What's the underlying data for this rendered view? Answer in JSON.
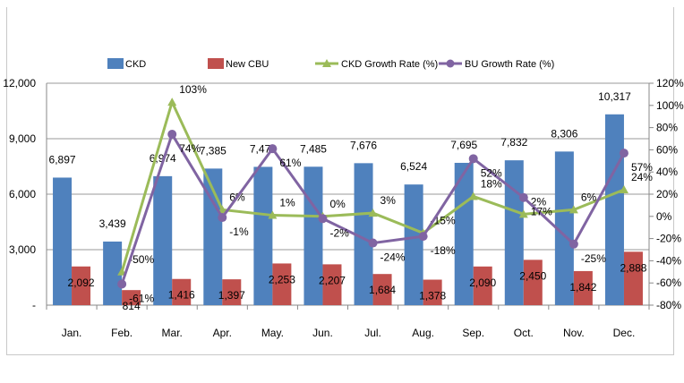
{
  "chart_data": {
    "type": "bar",
    "categories": [
      "Jan.",
      "Feb.",
      "Mar.",
      "Apr.",
      "May.",
      "Jun.",
      "Jul.",
      "Aug.",
      "Sep.",
      "Oct.",
      "Nov.",
      "Dec."
    ],
    "series": [
      {
        "name": "CKD",
        "type": "bar",
        "axis": "left",
        "color": "#4f81bd",
        "values": [
          6897,
          3439,
          6974,
          7385,
          7478,
          7485,
          7676,
          6524,
          7695,
          7832,
          8306,
          10317
        ],
        "labels": [
          "6,897",
          "3,439",
          "6,974",
          "7,385",
          "7,478",
          "7,485",
          "7,676",
          "6,524",
          "7,695",
          "7,832",
          "8,306",
          "10,317"
        ]
      },
      {
        "name": "New CBU",
        "type": "bar",
        "axis": "left",
        "color": "#c0504d",
        "values": [
          2092,
          814,
          1416,
          1397,
          2253,
          2207,
          1684,
          1378,
          2090,
          2450,
          1842,
          2888
        ],
        "labels": [
          "2,092",
          "814",
          "1,416",
          "1,397",
          "2,253",
          "2,207",
          "1,684",
          "1,378",
          "2,090",
          "2,450",
          "1,842",
          "2,888"
        ]
      },
      {
        "name": "CKD Growth Rate (%)",
        "type": "line",
        "axis": "right",
        "marker": "triangle",
        "color": "#9bbb59",
        "values": [
          null,
          -50,
          103,
          6,
          1,
          0,
          3,
          -15,
          18,
          2,
          6,
          24
        ],
        "labels": [
          "",
          "-50%",
          "103%",
          "6%",
          "1%",
          "0%",
          "3%",
          "-15%",
          "18%",
          "2%",
          "6%",
          "24%"
        ]
      },
      {
        "name": "BU Growth Rate (%)",
        "type": "line",
        "axis": "right",
        "marker": "circle",
        "color": "#8064a2",
        "values": [
          null,
          -61,
          74,
          -1,
          61,
          -2,
          -24,
          -18,
          52,
          17,
          -25,
          57
        ],
        "labels": [
          "",
          "-61%",
          "74%",
          "-1%",
          "61%",
          "-2%",
          "-24%",
          "-18%",
          "52%",
          "17%",
          "-25%",
          "57%"
        ]
      }
    ],
    "left_axis": {
      "ylim": [
        0,
        12000
      ],
      "ticks": [
        "-",
        "3,000",
        "6,000",
        "9,000",
        "12,000"
      ]
    },
    "right_axis": {
      "ylim": [
        -80,
        120
      ],
      "ticks": [
        "-80%",
        "-60%",
        "-40%",
        "-20%",
        "0%",
        "20%",
        "40%",
        "60%",
        "80%",
        "100%",
        "120%"
      ]
    },
    "grid": true,
    "legend": "top"
  }
}
